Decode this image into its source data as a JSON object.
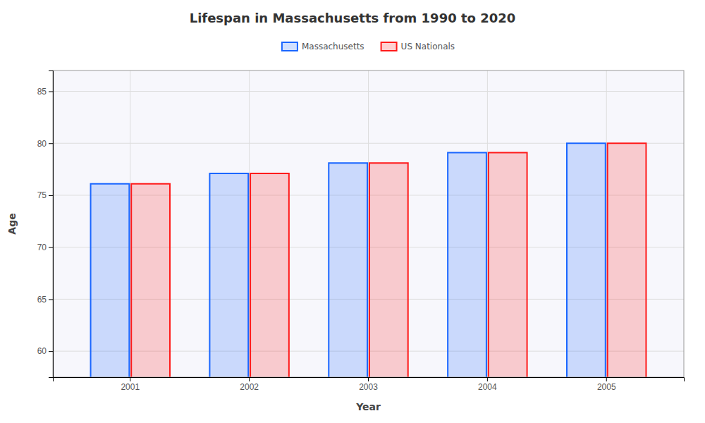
{
  "chart_data": {
    "type": "bar",
    "title": "Lifespan in Massachusetts from 1990 to 2020",
    "x_label": "Year",
    "y_label": "Age",
    "categories": [
      "2001",
      "2002",
      "2003",
      "2004",
      "2005"
    ],
    "series": [
      {
        "name": "Massachusetts",
        "color": "#1a66ff",
        "values": [
          76.1,
          77.1,
          78.1,
          79.1,
          80.0
        ]
      },
      {
        "name": "US Nationals",
        "color": "#ff1a1a",
        "values": [
          76.1,
          77.1,
          78.1,
          79.1,
          80.0
        ]
      }
    ],
    "ylim": [
      57.5,
      87
    ],
    "yticks": [
      60,
      65,
      70,
      75,
      80,
      85
    ],
    "grid": true,
    "legend": "top"
  }
}
